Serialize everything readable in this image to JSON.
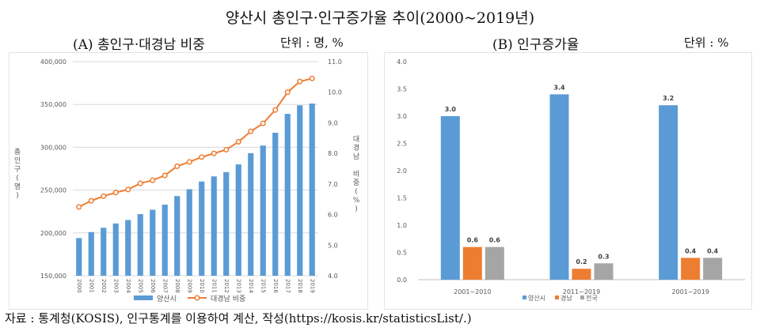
{
  "title": "양산시 총인구·인구증가율 추이(2000~2019년)",
  "panel_a": {
    "subtitle": "(A) 총인구·대경남 비중",
    "unit": "단위 : 명, %"
  },
  "panel_b": {
    "subtitle": "(B) 인구증가율",
    "unit": "단위 : %"
  },
  "source": "자료 : 통계청(KOSIS), 인구통계를 이용하여 계산, 작성(https://kosis.kr/statisticsList/.)",
  "colors": {
    "blue": "#5b9bd5",
    "orange": "#ed7d31",
    "gray": "#a5a5a5"
  },
  "chart_data": [
    {
      "type": "bar",
      "title": "(A) 총인구·대경남 비중",
      "categories": [
        "2000",
        "2001",
        "2002",
        "2003",
        "2004",
        "2005",
        "2006",
        "2007",
        "2008",
        "2009",
        "2010",
        "2011",
        "2012",
        "2013",
        "2014",
        "2015",
        "2016",
        "2017",
        "2018",
        "2019"
      ],
      "ylabel": "총인구(명)",
      "y2label": "대경남 비중(%)",
      "ylim": [
        150000,
        400000
      ],
      "y2lim": [
        4.0,
        11.0
      ],
      "yticks": [
        "150,000",
        "200,000",
        "250,000",
        "300,000",
        "350,000",
        "400,000"
      ],
      "y2ticks": [
        "4.0",
        "5.0",
        "6.0",
        "7.0",
        "8.0",
        "9.0",
        "10.0",
        "11.0"
      ],
      "series": [
        {
          "name": "양산시",
          "type": "bar",
          "axis": "left",
          "values": [
            194000,
            201000,
            206000,
            211000,
            215000,
            222000,
            227000,
            233000,
            243000,
            251000,
            260000,
            266000,
            271000,
            280000,
            293000,
            302000,
            317000,
            339000,
            349000,
            351000
          ]
        },
        {
          "name": "대경남 비중",
          "type": "line",
          "axis": "right",
          "values": [
            6.25,
            6.45,
            6.6,
            6.72,
            6.82,
            7.02,
            7.12,
            7.28,
            7.58,
            7.72,
            7.88,
            8.0,
            8.12,
            8.38,
            8.72,
            8.98,
            9.42,
            10.0,
            10.35,
            10.45
          ]
        }
      ],
      "legend": "bottom"
    },
    {
      "type": "bar",
      "title": "(B) 인구증가율",
      "categories": [
        "2001~2010",
        "2011~2019",
        "2001~2019"
      ],
      "ylim": [
        0,
        4.0
      ],
      "yticks": [
        "0.0",
        "0.5",
        "1.0",
        "1.5",
        "2.0",
        "2.5",
        "3.0",
        "3.5",
        "4.0"
      ],
      "series": [
        {
          "name": "양산시",
          "values": [
            3.0,
            3.4,
            3.2
          ],
          "labels": [
            "3.0",
            "3.4",
            "3.2"
          ]
        },
        {
          "name": "경남",
          "values": [
            0.6,
            0.2,
            0.4
          ],
          "labels": [
            "0.6",
            "0.2",
            "0.4"
          ]
        },
        {
          "name": "전국",
          "values": [
            0.6,
            0.3,
            0.4
          ],
          "labels": [
            "0.6",
            "0.3",
            "0.4"
          ]
        }
      ],
      "legend": "bottom"
    }
  ]
}
